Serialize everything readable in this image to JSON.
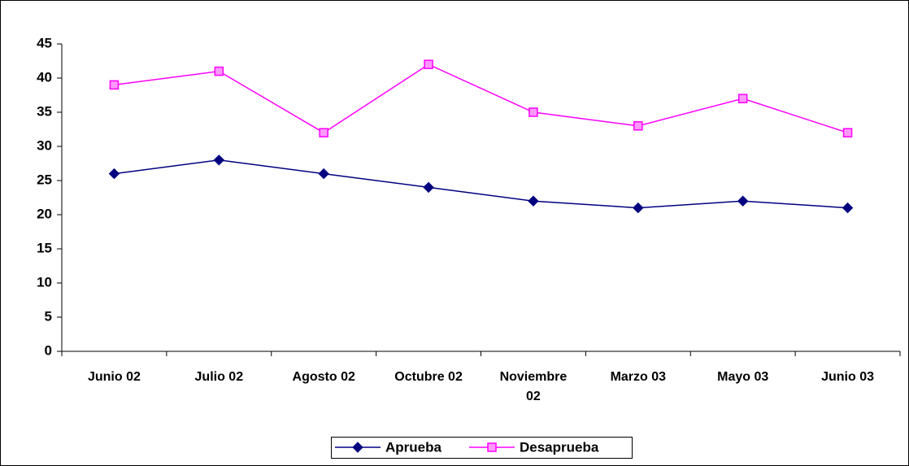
{
  "chart_data": {
    "type": "line",
    "categories": [
      "Junio 02",
      "Julio 02",
      "Agosto 02",
      "Octubre 02",
      "Noviembre 02",
      "Marzo 03",
      "Mayo 03",
      "Junio 03"
    ],
    "series": [
      {
        "name": "Aprueba",
        "color": "#000080",
        "values": [
          26,
          28,
          26,
          24,
          22,
          21,
          22,
          21
        ]
      },
      {
        "name": "Desaprueba",
        "color": "#ff00ff",
        "values": [
          39,
          41,
          32,
          42,
          35,
          33,
          37,
          32
        ]
      }
    ],
    "ylim": [
      0,
      45
    ],
    "yticks": [
      0,
      5,
      10,
      15,
      20,
      25,
      30,
      35,
      40,
      45
    ],
    "grid": false,
    "legend": "bottom"
  }
}
